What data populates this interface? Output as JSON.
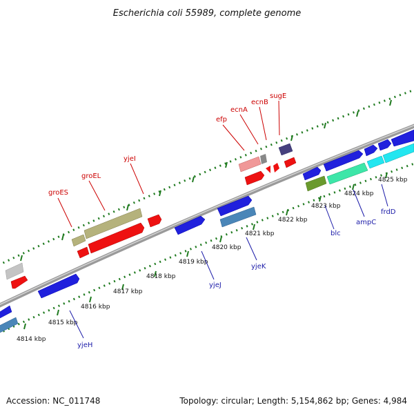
{
  "title": "Escherichia coli 55989, complete genome",
  "footer": {
    "accession": "Accession: NC_011748",
    "summary": "Topology: circular; Length: 5,154,862 bp; Genes: 4,984"
  },
  "colors": {
    "forward_label": "#cc0000",
    "reverse_label": "#1a1aa8",
    "backbone": "#8a8a8a",
    "tick_track": "#1f7a1f"
  },
  "kbp_labels": [
    "4814 kbp",
    "4815 kbp",
    "4816 kbp",
    "4817 kbp",
    "4818 kbp",
    "4819 kbp",
    "4820 kbp",
    "4821 kbp",
    "4822 kbp",
    "4823 kbp",
    "4824 kbp",
    "4825 kbp"
  ],
  "genes": {
    "groES": "groES",
    "groEL": "groEL",
    "yjeI": "yjeI",
    "efp": "efp",
    "ecnA": "ecnA",
    "ecnB": "ecnB",
    "sugE": "sugE",
    "yjeH": "yjeH",
    "yjeJ": "yjeJ",
    "yjeK": "yjeK",
    "blc": "blc",
    "ampC": "ampC",
    "frdD": "frdD"
  }
}
